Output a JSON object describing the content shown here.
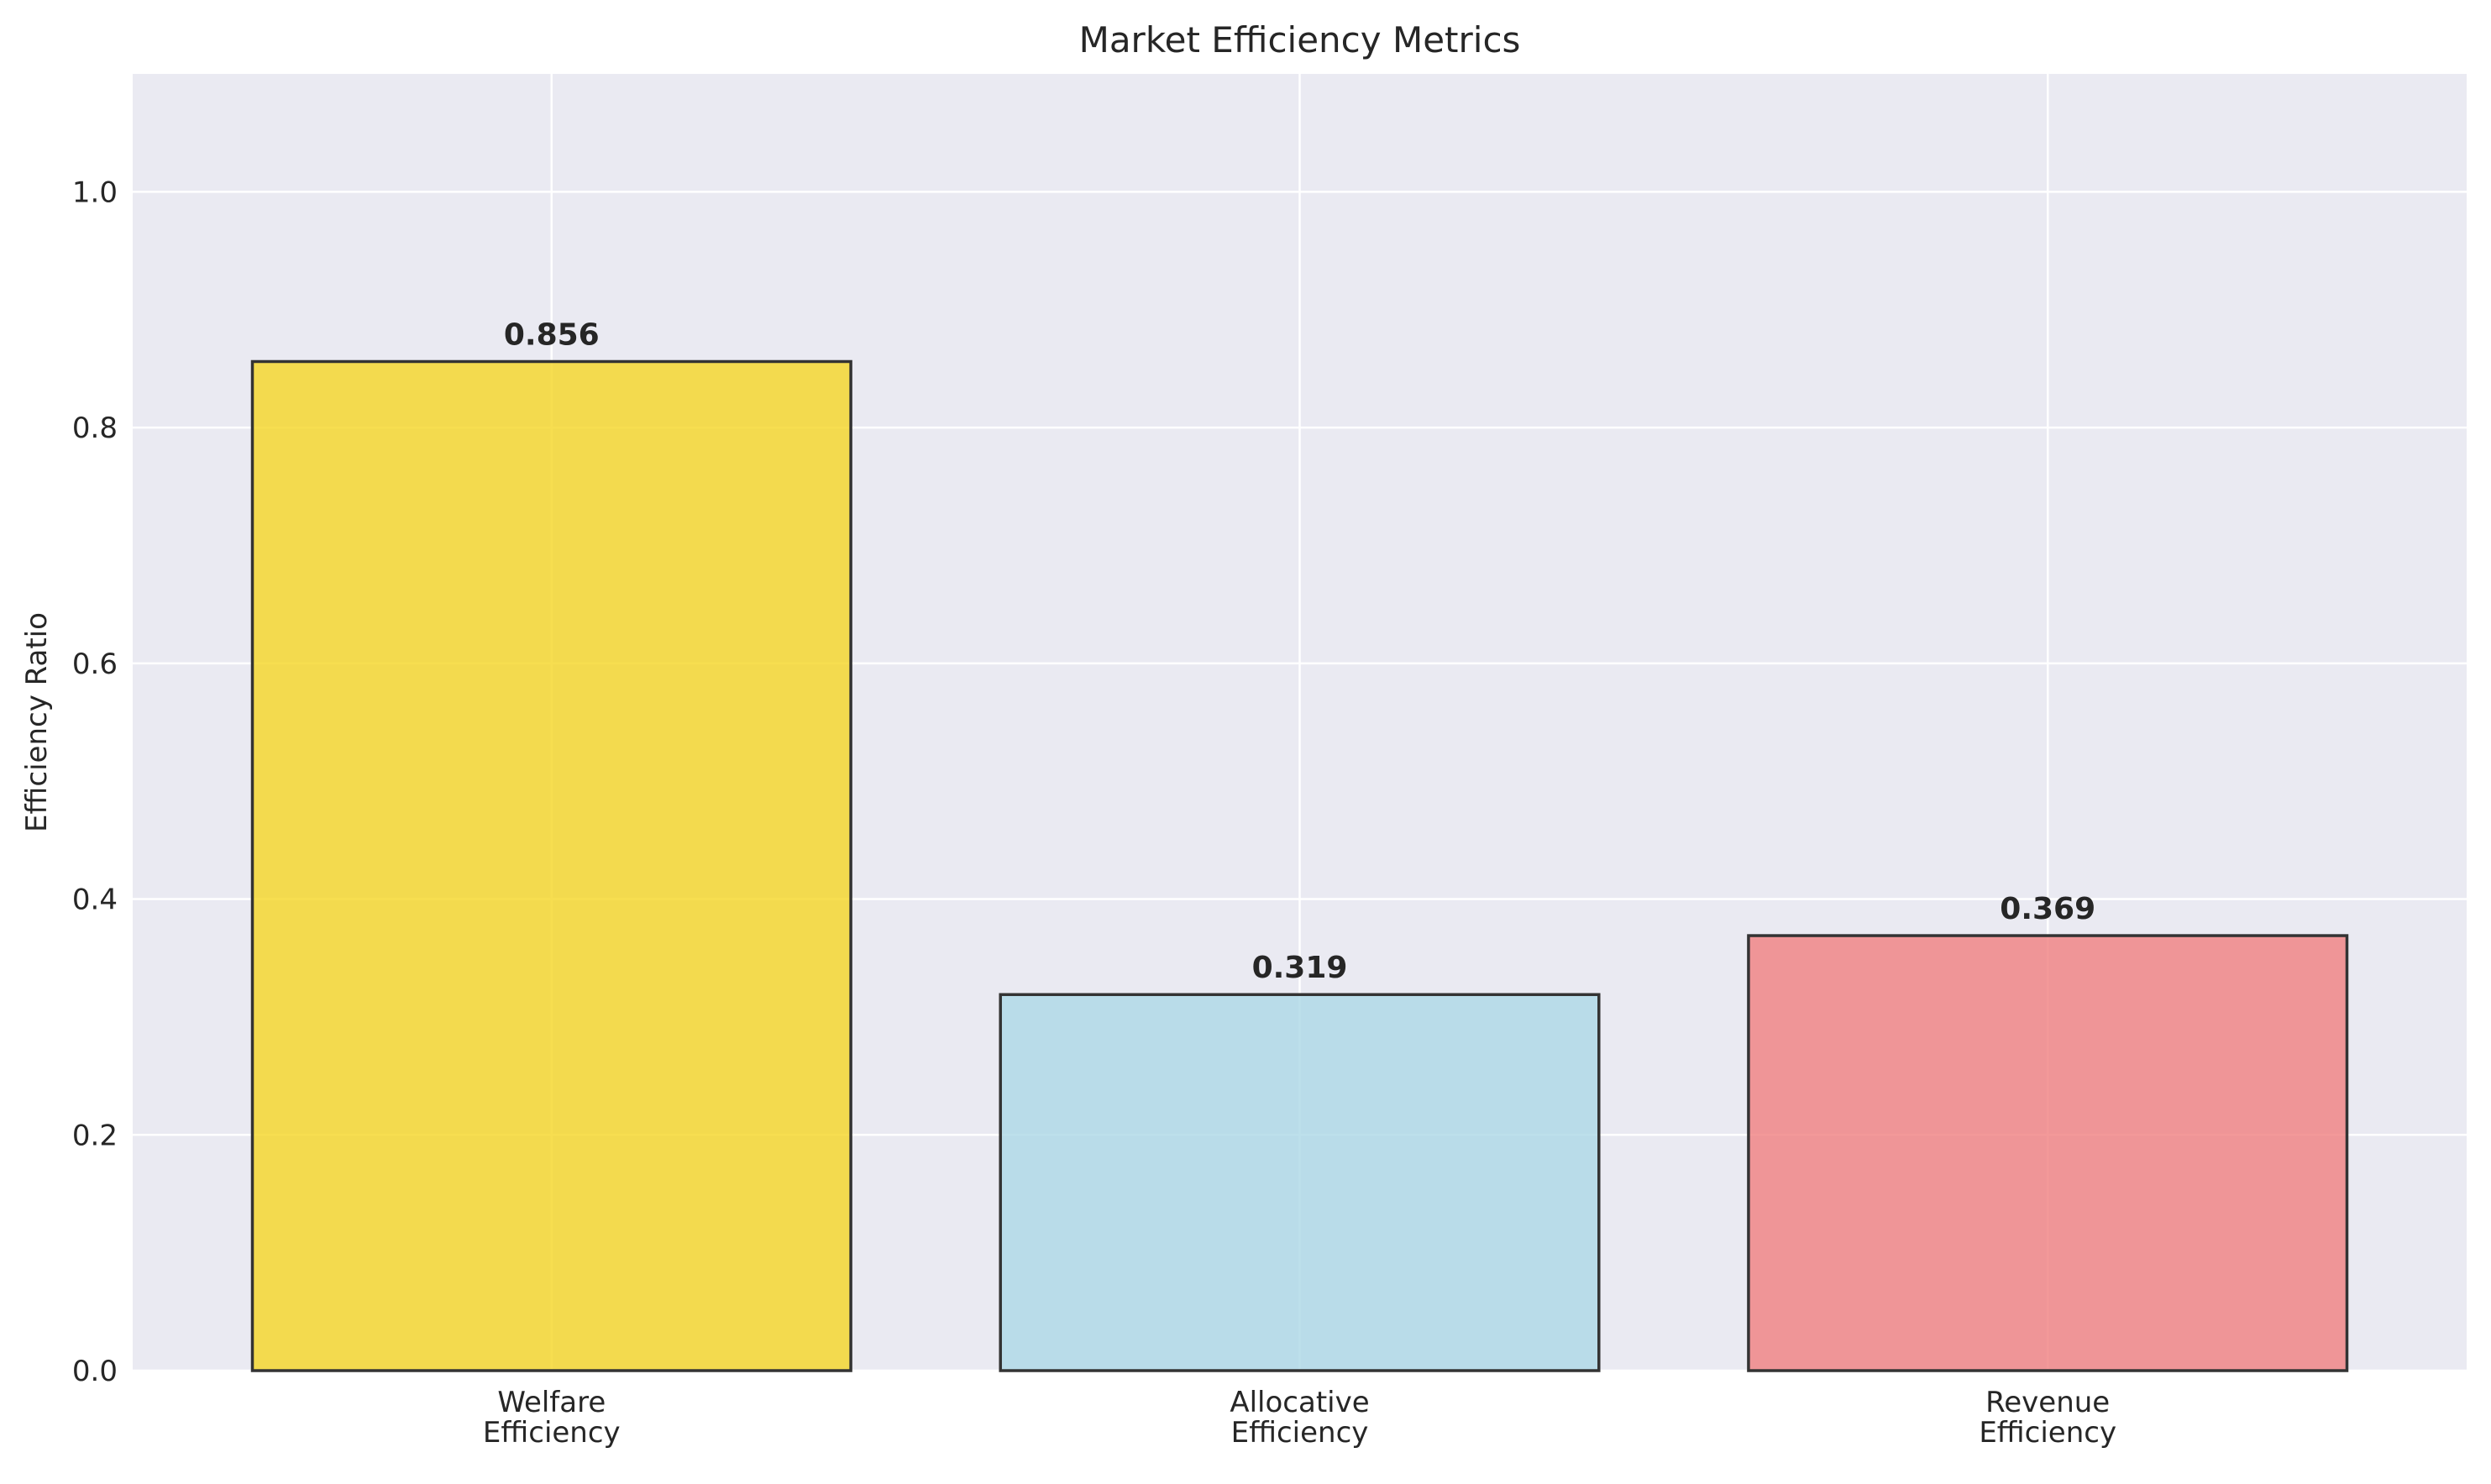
{
  "chart_data": {
    "type": "bar",
    "title": "Market Efficiency Metrics",
    "xlabel": "",
    "ylabel": "Efficiency Ratio",
    "categories": [
      [
        "Welfare",
        "Efficiency"
      ],
      [
        "Allocative",
        "Efficiency"
      ],
      [
        "Revenue",
        "Efficiency"
      ]
    ],
    "values": [
      0.856,
      0.319,
      0.369
    ],
    "value_labels": [
      "0.856",
      "0.319",
      "0.369"
    ],
    "colors": [
      "#F5D624",
      "#ADD8E6",
      "#F08080"
    ],
    "bar_opacity": 0.8,
    "edge_color": "#333333",
    "ylim": [
      0,
      1.1
    ],
    "yticks": [
      0.0,
      0.2,
      0.4,
      0.6,
      0.8,
      1.0
    ],
    "ytick_labels": [
      "0.0",
      "0.2",
      "0.4",
      "0.6",
      "0.8",
      "1.0"
    ],
    "grid": true,
    "plot_background": "#EAEAF2",
    "grid_color": "#FFFFFF"
  }
}
